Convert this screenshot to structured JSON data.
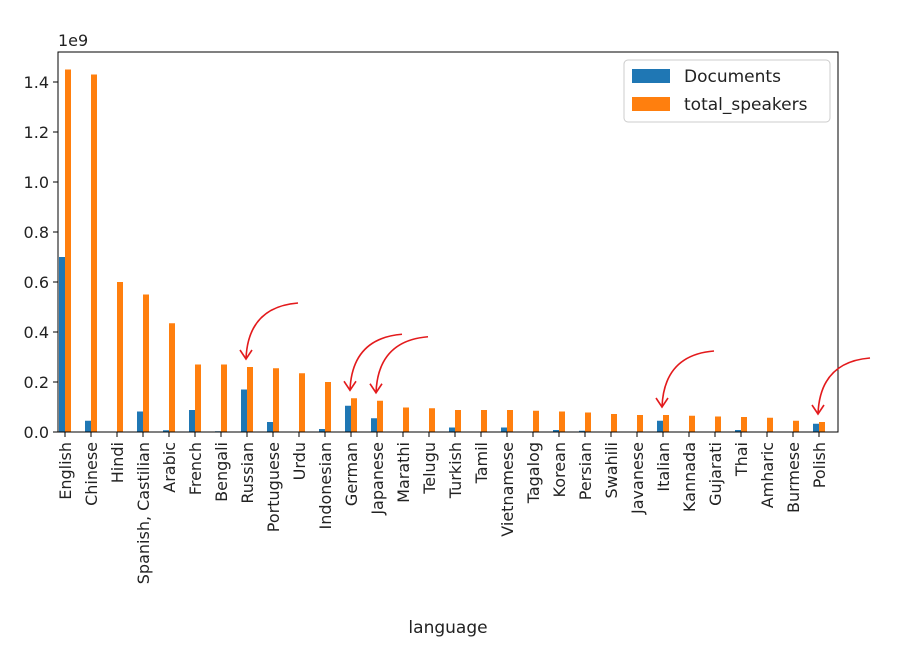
{
  "chart_data": {
    "type": "bar",
    "xlabel": "language",
    "ylabel": "",
    "scale_label": "1e9",
    "ylim": [
      0,
      1.52
    ],
    "yticks": [
      "0.0",
      "0.2",
      "0.4",
      "0.6",
      "0.8",
      "1.0",
      "1.2",
      "1.4"
    ],
    "ytick_values": [
      0,
      0.2,
      0.4,
      0.6,
      0.8,
      1.0,
      1.2,
      1.4
    ],
    "legend_position": "top-right",
    "grid": false,
    "categories": [
      "English",
      "Chinese",
      "Hindi",
      "Spanish, Castilian",
      "Arabic",
      "French",
      "Bengali",
      "Russian",
      "Portuguese",
      "Urdu",
      "Indonesian",
      "German",
      "Japanese",
      "Marathi",
      "Telugu",
      "Turkish",
      "Tamil",
      "Vietnamese",
      "Tagalog",
      "Korean",
      "Persian",
      "Swahili",
      "Javanese",
      "Italian",
      "Kannada",
      "Gujarati",
      "Thai",
      "Amharic",
      "Burmese",
      "Polish"
    ],
    "series": [
      {
        "name": "Documents",
        "color": "#1f77b4",
        "values": [
          0.7,
          0.045,
          0.002,
          0.082,
          0.007,
          0.088,
          0.003,
          0.17,
          0.04,
          0.002,
          0.012,
          0.105,
          0.055,
          0.002,
          0.002,
          0.018,
          0.002,
          0.018,
          0.002,
          0.008,
          0.005,
          0.002,
          0.002,
          0.045,
          0.002,
          0.002,
          0.008,
          0.002,
          0.002,
          0.033
        ]
      },
      {
        "name": "total_speakers",
        "color": "#ff7f0e",
        "values": [
          1.45,
          1.43,
          0.6,
          0.55,
          0.435,
          0.27,
          0.27,
          0.26,
          0.255,
          0.235,
          0.2,
          0.135,
          0.125,
          0.098,
          0.095,
          0.088,
          0.088,
          0.088,
          0.085,
          0.082,
          0.078,
          0.072,
          0.068,
          0.068,
          0.065,
          0.062,
          0.06,
          0.057,
          0.045,
          0.04
        ]
      }
    ],
    "annotations": [
      {
        "type": "arrow",
        "color": "#e31a1c",
        "target": "Russian"
      },
      {
        "type": "arrow",
        "color": "#e31a1c",
        "target": "German"
      },
      {
        "type": "arrow",
        "color": "#e31a1c",
        "target": "Japanese"
      },
      {
        "type": "arrow",
        "color": "#e31a1c",
        "target": "Italian"
      },
      {
        "type": "arrow",
        "color": "#e31a1c",
        "target": "Polish"
      }
    ]
  }
}
